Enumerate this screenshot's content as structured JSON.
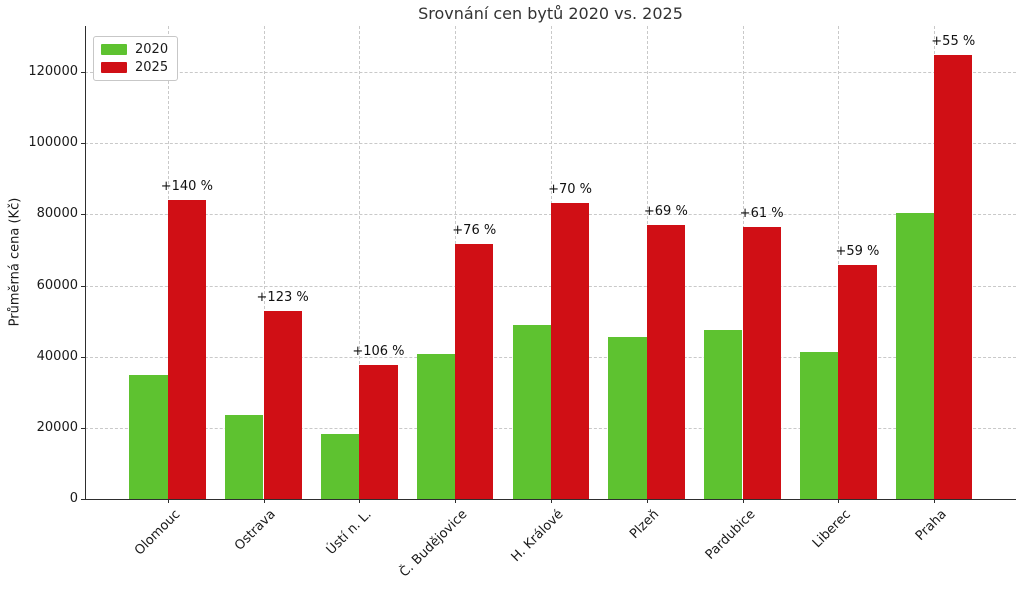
{
  "title": "Srovnání cen bytů 2020 vs. 2025",
  "chart_data": {
    "type": "bar",
    "title": "Srovnání cen bytů 2020 vs. 2025",
    "ylabel": "Průměrná cena (Kč)",
    "xlabel": "",
    "categories": [
      "Olomouc",
      "Ostrava",
      "Ústí n. L.",
      "Č. Budějovice",
      "H. Králové",
      "Plzeň",
      "Pardubice",
      "Liberec",
      "Praha"
    ],
    "series": [
      {
        "name": "2020",
        "color": "#5ec230",
        "values": [
          35000,
          23700,
          18300,
          40800,
          49000,
          45600,
          47500,
          41400,
          80500
        ]
      },
      {
        "name": "2025",
        "color": "#d00f15",
        "values": [
          84000,
          52900,
          37700,
          71800,
          83300,
          77100,
          76500,
          65800,
          124800
        ]
      }
    ],
    "annotations": [
      "+140 %",
      "+123 %",
      "+106 %",
      "+76 %",
      "+70 %",
      "+69 %",
      "+61 %",
      "+59 %",
      "+55 %"
    ],
    "yticks": [
      0,
      20000,
      40000,
      60000,
      80000,
      100000,
      120000
    ],
    "ylim": [
      0,
      133000
    ],
    "grid": "both, dashed light gray",
    "legend_position": "upper left",
    "bar_label_color": "#111111"
  }
}
